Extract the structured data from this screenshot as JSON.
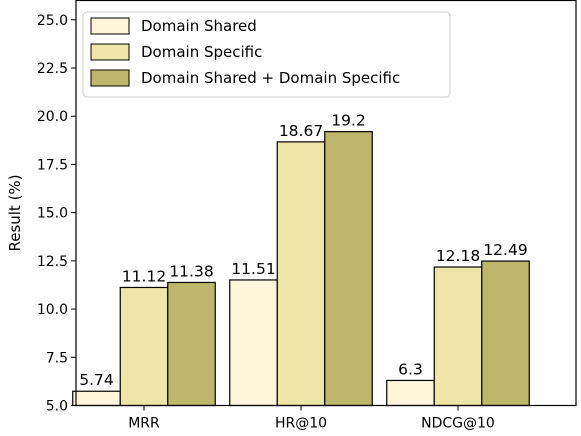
{
  "chart_data": {
    "type": "bar",
    "title": "",
    "xlabel": "",
    "ylabel": "Result (%)",
    "ylim": [
      5.0,
      26.0
    ],
    "yticks": [
      "5.0",
      "7.5",
      "10.0",
      "12.5",
      "15.0",
      "17.5",
      "20.0",
      "22.5",
      "25.0"
    ],
    "grid": false,
    "legend_position": "top-left",
    "categories": [
      "MRR",
      "HR@10",
      "NDCG@10"
    ],
    "series": [
      {
        "name": "Domain Shared",
        "color": "#fdf6da",
        "values": [
          5.74,
          11.51,
          6.3
        ],
        "labels": [
          "5.74",
          "11.51",
          "6.3"
        ]
      },
      {
        "name": "Domain Specific",
        "color": "#ede6a6",
        "values": [
          11.12,
          18.67,
          12.18
        ],
        "labels": [
          "11.12",
          "18.67",
          "12.18"
        ]
      },
      {
        "name": "Domain Shared + Domain Specific",
        "color": "#bdb76b",
        "values": [
          11.38,
          19.2,
          12.49
        ],
        "labels": [
          "11.38",
          "19.2",
          "12.49"
        ]
      }
    ]
  }
}
